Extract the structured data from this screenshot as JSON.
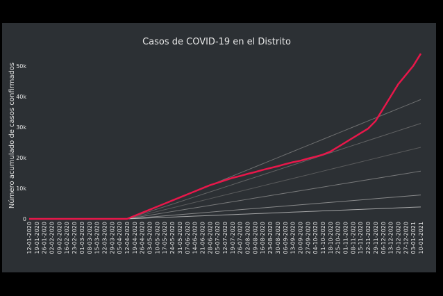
{
  "chart_data": {
    "type": "line",
    "title": "Casos de COVID-19 en el Distrito",
    "y_label": "Número acumulado de casos confirmados",
    "categories": [
      "12-01-2020",
      "19-01-2020",
      "26-01-2020",
      "02-02-2020",
      "09-02-2020",
      "16-02-2020",
      "23-02-2020",
      "01-03-2020",
      "08-03-2020",
      "15-03-2020",
      "22-03-2020",
      "29-03-2020",
      "05-04-2020",
      "12-04-2020",
      "19-04-2020",
      "26-04-2020",
      "03-05-2020",
      "10-05-2020",
      "17-05-2020",
      "24-05-2020",
      "31-05-2020",
      "07-06-2020",
      "14-06-2020",
      "21-06-2020",
      "28-06-2020",
      "05-07-2020",
      "12-07-2020",
      "19-07-2020",
      "26-07-2020",
      "02-08-2020",
      "09-08-2020",
      "16-08-2020",
      "23-08-2020",
      "30-08-2020",
      "06-09-2020",
      "13-09-2020",
      "20-09-2020",
      "27-09-2020",
      "04-10-2020",
      "11-10-2020",
      "18-10-2020",
      "25-10-2020",
      "01-11-2020",
      "08-11-2020",
      "15-11-2020",
      "22-11-2020",
      "29-11-2020",
      "06-12-2020",
      "13-12-2020",
      "20-12-2020",
      "27-12-2020",
      "03-01-2021",
      "10-01-2021"
    ],
    "ylim": [
      0,
      54500
    ],
    "yticks": [
      0,
      {
        "value": 10000,
        "label": "10k"
      },
      {
        "value": 20000,
        "label": "20k"
      },
      {
        "value": 30000,
        "label": "30k"
      },
      {
        "value": 40000,
        "label": "40k"
      },
      {
        "value": 50000,
        "label": "50k"
      }
    ],
    "series": [
      {
        "color": "#8a8a8a",
        "values": [
          0,
          0,
          0,
          0,
          0,
          0,
          0,
          0,
          0,
          0,
          0,
          0,
          0,
          0,
          1000,
          2000,
          3000,
          4000,
          5000,
          6000,
          7000,
          8000,
          9000,
          10000,
          11000,
          12000,
          13000,
          14000,
          15000,
          16000,
          17000,
          18000,
          19000,
          20000,
          21000,
          22000,
          23000,
          24000,
          25000,
          26000,
          27000,
          28000,
          29000,
          30000,
          31000,
          32000,
          33000,
          34000,
          35000,
          36000,
          37000,
          38000,
          39000
        ]
      },
      {
        "color": "#7a7a7a",
        "values": [
          0,
          0,
          0,
          0,
          0,
          0,
          0,
          0,
          0,
          0,
          0,
          0,
          0,
          0,
          800,
          1600,
          2400,
          3200,
          4000,
          4800,
          5600,
          6400,
          7200,
          8000,
          8800,
          9600,
          10400,
          11200,
          12000,
          12800,
          13600,
          14400,
          15200,
          16000,
          16800,
          17600,
          18400,
          19200,
          20000,
          20800,
          21600,
          22400,
          23200,
          24000,
          24800,
          25600,
          26400,
          27200,
          28000,
          28800,
          29600,
          30400,
          31200
        ]
      },
      {
        "color": "#6e6e6e",
        "values": [
          0,
          0,
          0,
          0,
          0,
          0,
          0,
          0,
          0,
          0,
          0,
          0,
          0,
          0,
          600,
          1200,
          1800,
          2400,
          3000,
          3600,
          4200,
          4800,
          5400,
          6000,
          6600,
          7200,
          7800,
          8400,
          9000,
          9600,
          10200,
          10800,
          11400,
          12000,
          12600,
          13200,
          13800,
          14400,
          15000,
          15600,
          16200,
          16800,
          17400,
          18000,
          18600,
          19200,
          19800,
          20400,
          21000,
          21600,
          22200,
          22800,
          23400
        ]
      },
      {
        "color": "#9a9a9a",
        "values": [
          0,
          0,
          0,
          0,
          0,
          0,
          0,
          0,
          0,
          0,
          0,
          0,
          0,
          0,
          400,
          800,
          1200,
          1600,
          2000,
          2400,
          2800,
          3200,
          3600,
          4000,
          4400,
          4800,
          5200,
          5600,
          6000,
          6400,
          6800,
          7200,
          7600,
          8000,
          8400,
          8800,
          9200,
          9600,
          10000,
          10400,
          10800,
          11200,
          11600,
          12000,
          12400,
          12800,
          13200,
          13600,
          14000,
          14400,
          14800,
          15200,
          15600
        ]
      },
      {
        "color": "#b0b0b0",
        "values": [
          0,
          0,
          0,
          0,
          0,
          0,
          0,
          0,
          0,
          0,
          0,
          0,
          0,
          0,
          200,
          400,
          600,
          800,
          1000,
          1200,
          1400,
          1600,
          1800,
          2000,
          2200,
          2400,
          2600,
          2800,
          3000,
          3200,
          3400,
          3600,
          3800,
          4000,
          4200,
          4400,
          4600,
          4800,
          5000,
          5200,
          5400,
          5600,
          5800,
          6000,
          6200,
          6400,
          6600,
          6800,
          7000,
          7200,
          7400,
          7600,
          7800
        ]
      },
      {
        "color": "#d8d8d8",
        "values": [
          0,
          0,
          0,
          0,
          0,
          0,
          0,
          0,
          0,
          0,
          0,
          0,
          0,
          0,
          100,
          200,
          300,
          400,
          500,
          600,
          700,
          800,
          900,
          1000,
          1100,
          1200,
          1300,
          1400,
          1500,
          1600,
          1700,
          1800,
          1900,
          2000,
          2100,
          2200,
          2300,
          2400,
          2500,
          2600,
          2700,
          2800,
          2900,
          3000,
          3100,
          3200,
          3300,
          3400,
          3500,
          3600,
          3700,
          3800,
          3900
        ]
      },
      {
        "color": "#e8174a",
        "values": [
          0,
          0,
          0,
          0,
          0,
          0,
          0,
          0,
          0,
          0,
          0,
          0,
          0,
          0,
          1000,
          2000,
          3000,
          4000,
          5000,
          6000,
          7000,
          8000,
          9000,
          10000,
          11000,
          11800,
          12600,
          13400,
          14000,
          14700,
          15300,
          16000,
          16600,
          17200,
          17900,
          18500,
          19000,
          19700,
          20300,
          21000,
          22000,
          23500,
          25000,
          26500,
          28000,
          29500,
          32000,
          36000,
          40000,
          44000,
          47000,
          50000,
          54000
        ]
      }
    ]
  }
}
